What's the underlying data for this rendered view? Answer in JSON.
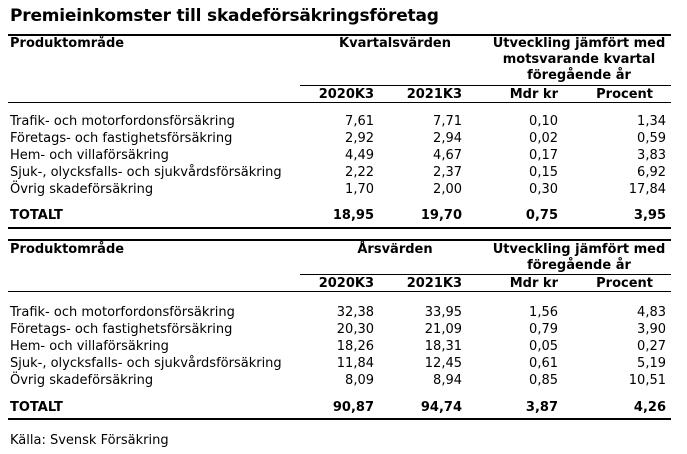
{
  "title": "Premieinkomster till skadeförsäkringsföretag",
  "quarterly": {
    "col_product": "Produktområde",
    "col_values": "Kvartalsvärden",
    "col_change": [
      "Utveckling jämfört med",
      "motsvarande kvartal",
      "föregående år"
    ],
    "sub": [
      "2020K3",
      "2021K3",
      "Mdr kr",
      "Procent"
    ],
    "rows": [
      {
        "label": "Trafik- och motorfordonsförsäkring",
        "v1": "7,61",
        "v2": "7,71",
        "mdr": "0,10",
        "pct": "1,34"
      },
      {
        "label": "Företags- och fastighetsförsäkring",
        "v1": "2,92",
        "v2": "2,94",
        "mdr": "0,02",
        "pct": "0,59"
      },
      {
        "label": "Hem- och villaförsäkring",
        "v1": "4,49",
        "v2": "4,67",
        "mdr": "0,17",
        "pct": "3,83"
      },
      {
        "label": "Sjuk-, olycksfalls- och sjukvårdsförsäkring",
        "v1": "2,22",
        "v2": "2,37",
        "mdr": "0,15",
        "pct": "6,92"
      },
      {
        "label": "Övrig skadeförsäkring",
        "v1": "1,70",
        "v2": "2,00",
        "mdr": "0,30",
        "pct": "17,84"
      }
    ],
    "total": {
      "label": "TOTALT",
      "v1": "18,95",
      "v2": "19,70",
      "mdr": "0,75",
      "pct": "3,95"
    }
  },
  "annual": {
    "col_product": "Produktområde",
    "col_values": "Årsvärden",
    "col_change": [
      "Utveckling jämfört med",
      "föregående år"
    ],
    "sub": [
      "2020K3",
      "2021K3",
      "Mdr kr",
      "Procent"
    ],
    "rows": [
      {
        "label": "Trafik- och motorfordonsförsäkring",
        "v1": "32,38",
        "v2": "33,95",
        "mdr": "1,56",
        "pct": "4,83"
      },
      {
        "label": "Företags- och fastighetsförsäkring",
        "v1": "20,30",
        "v2": "21,09",
        "mdr": "0,79",
        "pct": "3,90"
      },
      {
        "label": "Hem- och villaförsäkring",
        "v1": "18,26",
        "v2": "18,31",
        "mdr": "0,05",
        "pct": "0,27"
      },
      {
        "label": "Sjuk-, olycksfalls- och sjukvårdsförsäkring",
        "v1": "11,84",
        "v2": "12,45",
        "mdr": "0,61",
        "pct": "5,19"
      },
      {
        "label": "Övrig skadeförsäkring",
        "v1": "8,09",
        "v2": "8,94",
        "mdr": "0,85",
        "pct": "10,51"
      }
    ],
    "total": {
      "label": "TOTALT",
      "v1": "90,87",
      "v2": "94,74",
      "mdr": "3,87",
      "pct": "4,26"
    }
  },
  "source": "Källa: Svensk Försäkring"
}
